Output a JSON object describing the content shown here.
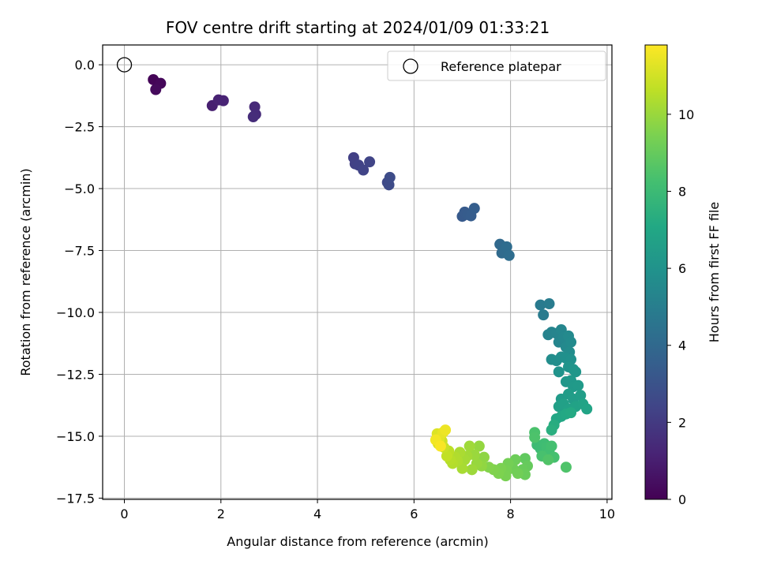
{
  "chart_data": {
    "type": "scatter",
    "title": "FOV centre drift starting at 2024/01/09 01:33:21",
    "xlabel": "Angular distance from reference (arcmin)",
    "ylabel": "Rotation from reference (arcmin)",
    "xlim": [
      -0.45,
      10.1
    ],
    "ylim": [
      -17.55,
      0.8
    ],
    "xticks": [
      0,
      2,
      4,
      6,
      8,
      10
    ],
    "xtick_labels": [
      "0",
      "2",
      "4",
      "6",
      "8",
      "10"
    ],
    "yticks": [
      0.0,
      -2.5,
      -5.0,
      -7.5,
      -10.0,
      -12.5,
      -15.0,
      -17.5
    ],
    "ytick_labels": [
      "0.0",
      "−2.5",
      "−5.0",
      "−7.5",
      "−10.0",
      "−12.5",
      "−15.0",
      "−17.5"
    ],
    "grid": true,
    "legend": {
      "position": "top-right",
      "entries": [
        "Reference platepar"
      ]
    },
    "reference_point": {
      "x": 0,
      "y": 0,
      "marker": "open-circle"
    },
    "colorbar": {
      "label": "Hours from first FF file",
      "colormap": "viridis",
      "range": [
        0,
        11.8
      ],
      "ticks": [
        0,
        2,
        4,
        6,
        8,
        10
      ],
      "tick_labels": [
        "0",
        "2",
        "4",
        "6",
        "8",
        "10"
      ]
    },
    "points": [
      {
        "x": 0.6,
        "y": -0.6,
        "c": 0.1
      },
      {
        "x": 0.75,
        "y": -0.75,
        "c": 0.2
      },
      {
        "x": 0.65,
        "y": -1.0,
        "c": 0.3
      },
      {
        "x": 1.82,
        "y": -1.65,
        "c": 1.0
      },
      {
        "x": 1.95,
        "y": -1.42,
        "c": 1.1
      },
      {
        "x": 2.05,
        "y": -1.45,
        "c": 1.15
      },
      {
        "x": 2.7,
        "y": -1.7,
        "c": 1.4
      },
      {
        "x": 2.72,
        "y": -2.0,
        "c": 1.45
      },
      {
        "x": 2.67,
        "y": -2.1,
        "c": 1.5
      },
      {
        "x": 4.75,
        "y": -3.75,
        "c": 2.2
      },
      {
        "x": 4.78,
        "y": -4.0,
        "c": 2.25
      },
      {
        "x": 4.85,
        "y": -4.05,
        "c": 2.3
      },
      {
        "x": 4.95,
        "y": -4.25,
        "c": 2.35
      },
      {
        "x": 5.08,
        "y": -3.92,
        "c": 2.4
      },
      {
        "x": 5.45,
        "y": -4.75,
        "c": 2.6
      },
      {
        "x": 5.48,
        "y": -4.85,
        "c": 2.65
      },
      {
        "x": 5.5,
        "y": -4.55,
        "c": 2.7
      },
      {
        "x": 7.0,
        "y": -6.12,
        "c": 3.3
      },
      {
        "x": 7.05,
        "y": -5.95,
        "c": 3.35
      },
      {
        "x": 7.12,
        "y": -6.05,
        "c": 3.4
      },
      {
        "x": 7.18,
        "y": -6.1,
        "c": 3.45
      },
      {
        "x": 7.25,
        "y": -5.8,
        "c": 3.5
      },
      {
        "x": 7.78,
        "y": -7.25,
        "c": 4.0
      },
      {
        "x": 7.82,
        "y": -7.6,
        "c": 4.05
      },
      {
        "x": 7.88,
        "y": -7.5,
        "c": 4.1
      },
      {
        "x": 7.92,
        "y": -7.35,
        "c": 4.15
      },
      {
        "x": 7.97,
        "y": -7.7,
        "c": 4.2
      },
      {
        "x": 8.62,
        "y": -9.7,
        "c": 4.8
      },
      {
        "x": 8.68,
        "y": -10.1,
        "c": 4.85
      },
      {
        "x": 8.8,
        "y": -9.65,
        "c": 4.9
      },
      {
        "x": 8.78,
        "y": -10.9,
        "c": 5.2
      },
      {
        "x": 8.85,
        "y": -10.8,
        "c": 5.25
      },
      {
        "x": 8.95,
        "y": -10.85,
        "c": 5.3
      },
      {
        "x": 9.0,
        "y": -11.2,
        "c": 5.35
      },
      {
        "x": 9.05,
        "y": -10.7,
        "c": 5.4
      },
      {
        "x": 9.1,
        "y": -11.0,
        "c": 5.45
      },
      {
        "x": 9.15,
        "y": -11.4,
        "c": 5.5
      },
      {
        "x": 9.2,
        "y": -10.95,
        "c": 5.55
      },
      {
        "x": 9.25,
        "y": -11.2,
        "c": 5.6
      },
      {
        "x": 9.22,
        "y": -11.6,
        "c": 5.65
      },
      {
        "x": 8.85,
        "y": -11.9,
        "c": 5.7
      },
      {
        "x": 8.95,
        "y": -11.95,
        "c": 5.75
      },
      {
        "x": 9.05,
        "y": -11.8,
        "c": 5.8
      },
      {
        "x": 9.15,
        "y": -11.85,
        "c": 5.85
      },
      {
        "x": 9.25,
        "y": -11.9,
        "c": 5.9
      },
      {
        "x": 9.0,
        "y": -12.4,
        "c": 6.0
      },
      {
        "x": 9.2,
        "y": -12.2,
        "c": 6.05
      },
      {
        "x": 9.3,
        "y": -12.3,
        "c": 6.1
      },
      {
        "x": 9.35,
        "y": -12.4,
        "c": 6.15
      },
      {
        "x": 9.15,
        "y": -12.8,
        "c": 6.2
      },
      {
        "x": 9.25,
        "y": -12.75,
        "c": 6.25
      },
      {
        "x": 9.3,
        "y": -13.0,
        "c": 6.3
      },
      {
        "x": 9.4,
        "y": -12.95,
        "c": 6.35
      },
      {
        "x": 9.05,
        "y": -13.5,
        "c": 6.4
      },
      {
        "x": 9.2,
        "y": -13.3,
        "c": 6.45
      },
      {
        "x": 9.3,
        "y": -13.5,
        "c": 6.5
      },
      {
        "x": 9.45,
        "y": -13.35,
        "c": 6.55
      },
      {
        "x": 9.0,
        "y": -13.8,
        "c": 6.6
      },
      {
        "x": 9.1,
        "y": -13.7,
        "c": 6.65
      },
      {
        "x": 9.2,
        "y": -13.9,
        "c": 6.7
      },
      {
        "x": 9.35,
        "y": -13.8,
        "c": 6.75
      },
      {
        "x": 9.5,
        "y": -13.7,
        "c": 6.8
      },
      {
        "x": 9.58,
        "y": -13.9,
        "c": 6.85
      },
      {
        "x": 8.95,
        "y": -14.3,
        "c": 7.0
      },
      {
        "x": 9.05,
        "y": -14.2,
        "c": 7.05
      },
      {
        "x": 9.15,
        "y": -14.1,
        "c": 7.1
      },
      {
        "x": 9.25,
        "y": -14.05,
        "c": 7.15
      },
      {
        "x": 8.9,
        "y": -14.55,
        "c": 7.3
      },
      {
        "x": 8.85,
        "y": -14.75,
        "c": 7.4
      },
      {
        "x": 8.55,
        "y": -15.35,
        "c": 8.0
      },
      {
        "x": 8.62,
        "y": -15.5,
        "c": 8.05
      },
      {
        "x": 8.7,
        "y": -15.3,
        "c": 8.1
      },
      {
        "x": 8.75,
        "y": -15.45,
        "c": 8.15
      },
      {
        "x": 8.8,
        "y": -15.65,
        "c": 8.2
      },
      {
        "x": 8.85,
        "y": -15.4,
        "c": 8.25
      },
      {
        "x": 8.9,
        "y": -15.85,
        "c": 8.3
      },
      {
        "x": 8.65,
        "y": -15.8,
        "c": 8.35
      },
      {
        "x": 8.5,
        "y": -14.85,
        "c": 8.4
      },
      {
        "x": 8.5,
        "y": -15.05,
        "c": 8.45
      },
      {
        "x": 9.15,
        "y": -16.25,
        "c": 8.5
      },
      {
        "x": 8.78,
        "y": -15.95,
        "c": 8.55
      },
      {
        "x": 8.3,
        "y": -15.9,
        "c": 8.9
      },
      {
        "x": 8.35,
        "y": -16.2,
        "c": 9.0
      },
      {
        "x": 8.25,
        "y": -16.35,
        "c": 9.05
      },
      {
        "x": 8.3,
        "y": -16.55,
        "c": 9.1
      },
      {
        "x": 8.1,
        "y": -15.95,
        "c": 9.15
      },
      {
        "x": 8.05,
        "y": -16.3,
        "c": 9.2
      },
      {
        "x": 8.15,
        "y": -16.5,
        "c": 9.25
      },
      {
        "x": 7.95,
        "y": -16.1,
        "c": 9.3
      },
      {
        "x": 7.92,
        "y": -16.4,
        "c": 9.35
      },
      {
        "x": 7.9,
        "y": -16.6,
        "c": 9.4
      },
      {
        "x": 7.8,
        "y": -16.3,
        "c": 9.45
      },
      {
        "x": 7.75,
        "y": -16.5,
        "c": 9.5
      },
      {
        "x": 7.65,
        "y": -16.35,
        "c": 9.55
      },
      {
        "x": 7.55,
        "y": -16.25,
        "c": 9.6
      },
      {
        "x": 7.45,
        "y": -15.85,
        "c": 9.8
      },
      {
        "x": 7.4,
        "y": -16.2,
        "c": 9.85
      },
      {
        "x": 7.35,
        "y": -15.4,
        "c": 9.9
      },
      {
        "x": 7.3,
        "y": -16.1,
        "c": 9.95
      },
      {
        "x": 7.25,
        "y": -15.75,
        "c": 10.0
      },
      {
        "x": 7.2,
        "y": -16.35,
        "c": 10.05
      },
      {
        "x": 7.15,
        "y": -15.4,
        "c": 10.1
      },
      {
        "x": 7.1,
        "y": -15.8,
        "c": 10.15
      },
      {
        "x": 7.05,
        "y": -15.95,
        "c": 10.2
      },
      {
        "x": 7.0,
        "y": -16.3,
        "c": 10.25
      },
      {
        "x": 6.95,
        "y": -15.65,
        "c": 10.3
      },
      {
        "x": 6.9,
        "y": -16.0,
        "c": 10.35
      },
      {
        "x": 6.85,
        "y": -15.85,
        "c": 10.4
      },
      {
        "x": 6.8,
        "y": -16.1,
        "c": 10.45
      },
      {
        "x": 6.75,
        "y": -15.95,
        "c": 10.5
      },
      {
        "x": 6.72,
        "y": -15.6,
        "c": 10.6
      },
      {
        "x": 6.68,
        "y": -15.8,
        "c": 10.7
      },
      {
        "x": 6.62,
        "y": -15.45,
        "c": 10.8
      },
      {
        "x": 6.58,
        "y": -15.2,
        "c": 10.9
      },
      {
        "x": 6.55,
        "y": -15.0,
        "c": 11.0
      },
      {
        "x": 6.5,
        "y": -15.3,
        "c": 11.1
      },
      {
        "x": 6.48,
        "y": -14.9,
        "c": 11.2
      },
      {
        "x": 6.52,
        "y": -15.1,
        "c": 11.3
      },
      {
        "x": 6.6,
        "y": -14.85,
        "c": 11.4
      },
      {
        "x": 6.65,
        "y": -14.75,
        "c": 11.5
      },
      {
        "x": 6.45,
        "y": -15.15,
        "c": 11.6
      },
      {
        "x": 6.55,
        "y": -15.4,
        "c": 11.7
      }
    ]
  }
}
